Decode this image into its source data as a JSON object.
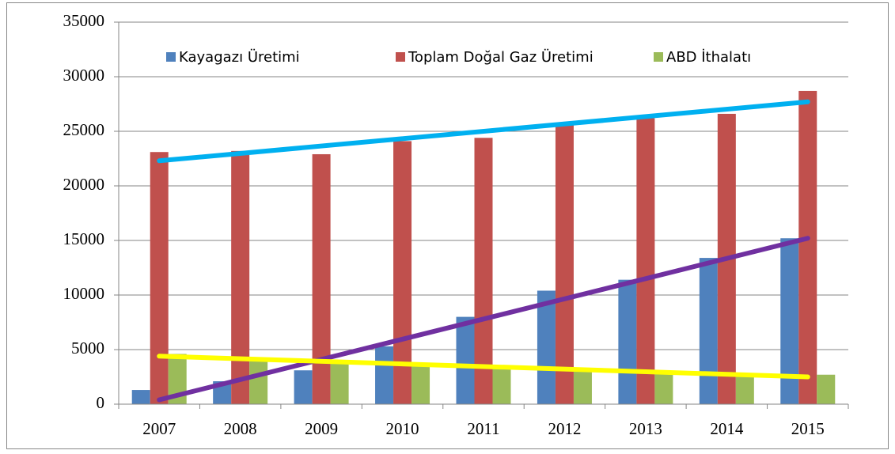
{
  "chart_data": {
    "type": "bar",
    "categories": [
      "2007",
      "2008",
      "2009",
      "2010",
      "2011",
      "2012",
      "2013",
      "2014",
      "2015"
    ],
    "series": [
      {
        "name": "Kayagazı Üretimi",
        "color": "#4f81bd",
        "values": [
          1300,
          2100,
          3100,
          5300,
          8000,
          10400,
          11400,
          13400,
          15200
        ]
      },
      {
        "name": "Toplam Doğal Gaz Üretimi",
        "color": "#c0504d",
        "values": [
          23100,
          23200,
          22900,
          24100,
          24400,
          25600,
          26200,
          26600,
          28700
        ]
      },
      {
        "name": "ABD İthalatı",
        "color": "#9bbb59",
        "values": [
          4600,
          4000,
          3800,
          3700,
          3400,
          3200,
          2900,
          2700,
          2700
        ]
      }
    ],
    "trendlines": [
      {
        "color": "#00b0f0",
        "values": [
          22300,
          27700
        ]
      },
      {
        "color": "#7030a0",
        "values": [
          400,
          15200
        ]
      },
      {
        "color": "#ffff00",
        "values": [
          4400,
          2500
        ]
      }
    ],
    "ylim": [
      0,
      35000
    ],
    "yticks": [
      0,
      5000,
      10000,
      15000,
      20000,
      25000,
      30000,
      35000
    ],
    "grid": true,
    "legend": "top"
  }
}
